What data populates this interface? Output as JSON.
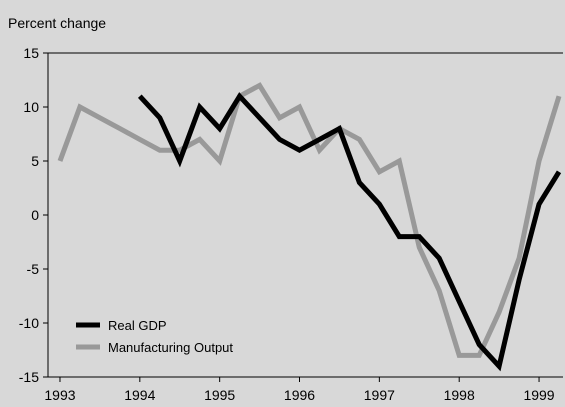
{
  "chart_data": {
    "type": "line",
    "ylabel": "Percent change",
    "ylim": [
      -15,
      15
    ],
    "y_ticks": [
      15,
      10,
      5,
      0,
      -5,
      -10,
      -15
    ],
    "x_ticks": [
      "1993",
      "1994",
      "1995",
      "1996",
      "1997",
      "1998",
      "1999"
    ],
    "x_range": [
      1993,
      1999.25
    ],
    "grid": false,
    "legend_position": "bottom-left",
    "series": [
      {
        "name": "Real GDP",
        "color": "#000000",
        "points": [
          {
            "x": 1994.0,
            "y": 11
          },
          {
            "x": 1994.25,
            "y": 9
          },
          {
            "x": 1994.5,
            "y": 5
          },
          {
            "x": 1994.75,
            "y": 10
          },
          {
            "x": 1995.0,
            "y": 8
          },
          {
            "x": 1995.25,
            "y": 11
          },
          {
            "x": 1995.5,
            "y": 9
          },
          {
            "x": 1995.75,
            "y": 7
          },
          {
            "x": 1996.0,
            "y": 6
          },
          {
            "x": 1996.25,
            "y": 7
          },
          {
            "x": 1996.5,
            "y": 8
          },
          {
            "x": 1996.75,
            "y": 3
          },
          {
            "x": 1997.0,
            "y": 1
          },
          {
            "x": 1997.25,
            "y": -2
          },
          {
            "x": 1997.5,
            "y": -2
          },
          {
            "x": 1997.75,
            "y": -4
          },
          {
            "x": 1998.0,
            "y": -8
          },
          {
            "x": 1998.25,
            "y": -12
          },
          {
            "x": 1998.5,
            "y": -14
          },
          {
            "x": 1998.75,
            "y": -6
          },
          {
            "x": 1999.0,
            "y": 1
          },
          {
            "x": 1999.25,
            "y": 4
          }
        ]
      },
      {
        "name": "Manufacturing Output",
        "color": "#999999",
        "points": [
          {
            "x": 1993.0,
            "y": 5
          },
          {
            "x": 1993.25,
            "y": 10
          },
          {
            "x": 1993.5,
            "y": 9
          },
          {
            "x": 1993.75,
            "y": 8
          },
          {
            "x": 1994.0,
            "y": 7
          },
          {
            "x": 1994.25,
            "y": 6
          },
          {
            "x": 1994.5,
            "y": 6
          },
          {
            "x": 1994.75,
            "y": 7
          },
          {
            "x": 1995.0,
            "y": 5
          },
          {
            "x": 1995.25,
            "y": 11
          },
          {
            "x": 1995.5,
            "y": 12
          },
          {
            "x": 1995.75,
            "y": 9
          },
          {
            "x": 1996.0,
            "y": 10
          },
          {
            "x": 1996.25,
            "y": 6
          },
          {
            "x": 1996.5,
            "y": 8
          },
          {
            "x": 1996.75,
            "y": 7
          },
          {
            "x": 1997.0,
            "y": 4
          },
          {
            "x": 1997.25,
            "y": 5
          },
          {
            "x": 1997.5,
            "y": -3
          },
          {
            "x": 1997.75,
            "y": -7
          },
          {
            "x": 1998.0,
            "y": -13
          },
          {
            "x": 1998.25,
            "y": -13
          },
          {
            "x": 1998.5,
            "y": -9
          },
          {
            "x": 1998.75,
            "y": -4
          },
          {
            "x": 1999.0,
            "y": 5
          },
          {
            "x": 1999.25,
            "y": 11
          }
        ]
      }
    ]
  }
}
